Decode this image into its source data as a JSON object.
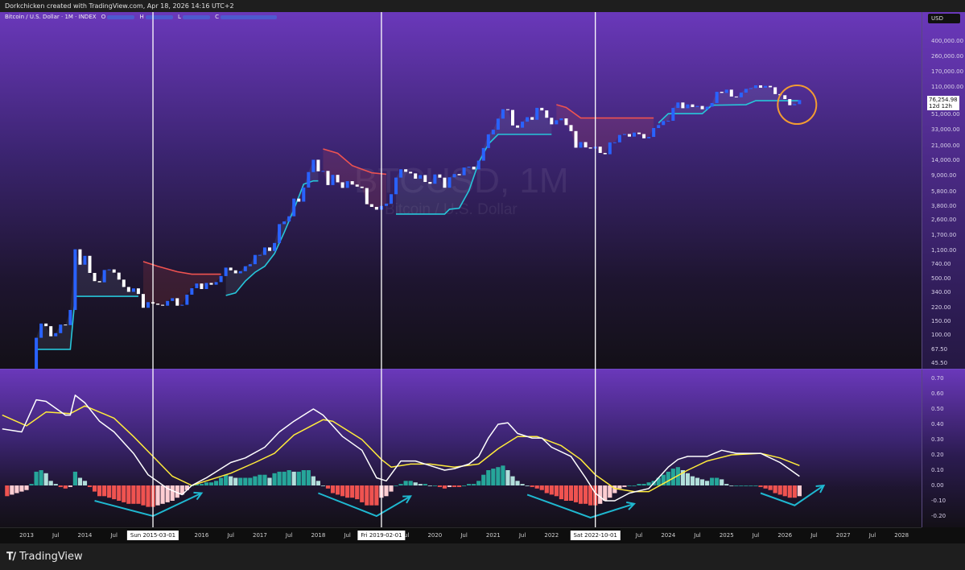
{
  "header": {
    "attribution": "Dorkchicken created with TradingView.com, Apr 18, 2026 14:16 UTC+2"
  },
  "legend": {
    "symbol": "Bitcoin / U.S. Dollar · 1M · INDEX",
    "o_label": "O",
    "h_label": "H",
    "l_label": "L",
    "c_label": "C"
  },
  "watermark": {
    "ticker": "BTCUSD, 1M",
    "name": "Bitcoin / U.S. Dollar"
  },
  "currency": "USD",
  "last_price": {
    "value": "76,254.98",
    "countdown": "12d 12h"
  },
  "footer": {
    "brand": "TradingView"
  },
  "colors": {
    "up": "#2962ff",
    "down": "#ffffff",
    "trend_bull": "#26c6da",
    "trend_bear": "#ef5350",
    "macd": "#ffffff",
    "signal": "#ffeb3b",
    "hist_pos_grow": "#26a69a",
    "hist_pos_fall": "#b2dfdb",
    "hist_neg_grow": "#ef5350",
    "hist_neg_fall": "#ffcdd2",
    "annotation_arrow": "#1fb8d0",
    "annotation_circle": "#f39c32",
    "markers": "#ffffff"
  },
  "chart_data": [
    {
      "type": "candlestick",
      "scale": "log",
      "start": "2013-01",
      "interval": "1M",
      "closes": [
        20,
        33,
        93,
        139,
        129,
        97,
        106,
        135,
        133,
        204,
        1130,
        732,
        940,
        580,
        460,
        445,
        630,
        640,
        585,
        480,
        390,
        340,
        375,
        320,
        217,
        254,
        244,
        236,
        230,
        263,
        284,
        230,
        236,
        314,
        377,
        430,
        368,
        437,
        416,
        448,
        531,
        674,
        624,
        574,
        609,
        700,
        742,
        963,
        965,
        1190,
        1080,
        1350,
        2300,
        2480,
        2870,
        4730,
        4340,
        6460,
        10000,
        14150,
        10220,
        10330,
        6930,
        9240,
        7490,
        6400,
        7730,
        7030,
        6630,
        6370,
        4040,
        3740,
        3460,
        3850,
        4100,
        5350,
        8560,
        10820,
        10080,
        9630,
        8300,
        9190,
        7560,
        7190,
        9350,
        8540,
        6430,
        8620,
        9450,
        9140,
        11350,
        11650,
        10780,
        13800,
        19700,
        29000,
        33100,
        45200,
        58900,
        57700,
        37300,
        35000,
        41500,
        47100,
        43800,
        61300,
        57000,
        46300,
        38500,
        43200,
        45500,
        37700,
        31800,
        19900,
        23300,
        20050,
        19400,
        20500,
        17160,
        16550,
        23100,
        23150,
        28500,
        29250,
        27200,
        30480,
        29230,
        25940,
        26970,
        34660,
        37720,
        42280,
        42580,
        61130,
        71290,
        60640,
        67500,
        62680,
        64620,
        58970,
        63330,
        70220,
        96400,
        93430,
        102400,
        84350,
        82550,
        94200,
        104600,
        107100,
        115700,
        108200,
        114000,
        109500,
        90400,
        87500,
        78600,
        66000,
        68000,
        76254.98
      ],
      "price_ticks": [
        "400,000.00",
        "260,000.00",
        "170,000.00",
        "110,000.00",
        "51,000.00",
        "33,000.00",
        "21,000.00",
        "14,000.00",
        "9,000.00",
        "5,800.00",
        "3,800.00",
        "2,600.00",
        "1,700.00",
        "1,100.00",
        "740.00",
        "500.00",
        "340.00",
        "220.00",
        "150.00",
        "100.00",
        "67.50",
        "45.50"
      ],
      "trend_line": [
        {
          "trend": "bull",
          "points": [
            [
              "2013-03",
              67
            ],
            [
              "2013-10",
              67
            ],
            [
              "2013-11",
              300
            ],
            [
              "2014-12",
              300
            ]
          ]
        },
        {
          "trend": "bear",
          "points": [
            [
              "2015-01",
              800
            ],
            [
              "2015-04",
              700
            ],
            [
              "2015-08",
              600
            ],
            [
              "2015-11",
              560
            ],
            [
              "2016-05",
              560
            ]
          ]
        },
        {
          "trend": "bull",
          "points": [
            [
              "2016-06",
              307
            ],
            [
              "2016-08",
              330
            ],
            [
              "2016-10",
              460
            ],
            [
              "2016-12",
              590
            ],
            [
              "2017-02",
              700
            ],
            [
              "2017-04",
              1000
            ],
            [
              "2017-06",
              1820
            ],
            [
              "2017-08",
              3490
            ],
            [
              "2017-10",
              7100
            ],
            [
              "2017-12",
              7800
            ],
            [
              "2018-01",
              7800
            ]
          ]
        },
        {
          "trend": "bear",
          "points": [
            [
              "2018-02",
              19200
            ],
            [
              "2018-05",
              17000
            ],
            [
              "2018-08",
              12000
            ],
            [
              "2018-12",
              9800
            ],
            [
              "2019-03",
              9400
            ]
          ]
        },
        {
          "trend": "bull",
          "points": [
            [
              "2019-05",
              3050
            ],
            [
              "2020-03",
              3050
            ],
            [
              "2020-04",
              3500
            ],
            [
              "2020-06",
              3600
            ],
            [
              "2020-08",
              5900
            ],
            [
              "2020-10",
              13000
            ],
            [
              "2020-12",
              22000
            ],
            [
              "2021-02",
              29000
            ],
            [
              "2022-01",
              29000
            ]
          ]
        },
        {
          "trend": "bear",
          "points": [
            [
              "2022-02",
              67000
            ],
            [
              "2022-04",
              62000
            ],
            [
              "2022-07",
              46000
            ],
            [
              "2023-10",
              46000
            ]
          ]
        },
        {
          "trend": "bull",
          "points": [
            [
              "2023-11",
              40000
            ],
            [
              "2024-01",
              52000
            ],
            [
              "2024-08",
              52000
            ],
            [
              "2024-10",
              66000
            ],
            [
              "2025-05",
              67000
            ],
            [
              "2025-07",
              75000
            ],
            [
              "2026-04",
              75000
            ]
          ]
        }
      ],
      "annotation_circle": {
        "date": "2026-03",
        "price": 67000
      }
    },
    {
      "type": "line+histogram",
      "ticks": [
        "0.70",
        "0.60",
        "0.50",
        "0.40",
        "0.30",
        "0.20",
        "0.10",
        "0.00",
        "-0.10",
        "-0.20"
      ],
      "macd": [
        [
          "2012-08",
          0.37
        ],
        [
          "2012-12",
          0.35
        ],
        [
          "2013-03",
          0.56
        ],
        [
          "2013-05",
          0.55
        ],
        [
          "2013-09",
          0.46
        ],
        [
          "2013-10",
          0.46
        ],
        [
          "2013-11",
          0.59
        ],
        [
          "2014-01",
          0.54
        ],
        [
          "2014-04",
          0.42
        ],
        [
          "2014-07",
          0.35
        ],
        [
          "2014-11",
          0.21
        ],
        [
          "2015-02",
          0.07
        ],
        [
          "2015-06",
          -0.02
        ],
        [
          "2015-09",
          -0.06
        ],
        [
          "2015-11",
          0.0
        ],
        [
          "2016-02",
          0.05
        ],
        [
          "2016-07",
          0.15
        ],
        [
          "2016-10",
          0.18
        ],
        [
          "2017-02",
          0.25
        ],
        [
          "2017-05",
          0.35
        ],
        [
          "2017-08",
          0.42
        ],
        [
          "2017-12",
          0.5
        ],
        [
          "2018-02",
          0.46
        ],
        [
          "2018-06",
          0.32
        ],
        [
          "2018-10",
          0.23
        ],
        [
          "2019-01",
          0.05
        ],
        [
          "2019-03",
          0.03
        ],
        [
          "2019-06",
          0.16
        ],
        [
          "2019-08",
          0.16
        ],
        [
          "2019-09",
          0.16
        ],
        [
          "2019-12",
          0.13
        ],
        [
          "2020-03",
          0.1
        ],
        [
          "2020-05",
          0.11
        ],
        [
          "2020-08",
          0.14
        ],
        [
          "2020-10",
          0.19
        ],
        [
          "2020-12",
          0.31
        ],
        [
          "2021-02",
          0.4
        ],
        [
          "2021-04",
          0.41
        ],
        [
          "2021-06",
          0.34
        ],
        [
          "2021-09",
          0.31
        ],
        [
          "2021-11",
          0.31
        ],
        [
          "2022-01",
          0.25
        ],
        [
          "2022-05",
          0.19
        ],
        [
          "2022-08",
          0.05
        ],
        [
          "2022-10",
          -0.05
        ],
        [
          "2022-12",
          -0.1
        ],
        [
          "2023-02",
          -0.1
        ],
        [
          "2023-05",
          -0.05
        ],
        [
          "2023-09",
          -0.02
        ],
        [
          "2024-01",
          0.12
        ],
        [
          "2024-03",
          0.17
        ],
        [
          "2024-05",
          0.19
        ],
        [
          "2024-07",
          0.19
        ],
        [
          "2024-09",
          0.19
        ],
        [
          "2024-12",
          0.23
        ],
        [
          "2025-03",
          0.21
        ],
        [
          "2025-08",
          0.21
        ],
        [
          "2025-12",
          0.15
        ],
        [
          "2026-04",
          0.06
        ]
      ],
      "signal": [
        [
          "2012-08",
          0.46
        ],
        [
          "2013-01",
          0.39
        ],
        [
          "2013-05",
          0.48
        ],
        [
          "2013-10",
          0.47
        ],
        [
          "2014-01",
          0.52
        ],
        [
          "2014-07",
          0.44
        ],
        [
          "2014-11",
          0.32
        ],
        [
          "2015-03",
          0.19
        ],
        [
          "2015-07",
          0.06
        ],
        [
          "2015-11",
          0.0
        ],
        [
          "2016-02",
          0.03
        ],
        [
          "2016-07",
          0.08
        ],
        [
          "2016-12",
          0.15
        ],
        [
          "2017-04",
          0.21
        ],
        [
          "2017-08",
          0.33
        ],
        [
          "2018-02",
          0.43
        ],
        [
          "2018-04",
          0.42
        ],
        [
          "2018-10",
          0.3
        ],
        [
          "2019-02",
          0.17
        ],
        [
          "2019-04",
          0.12
        ],
        [
          "2019-08",
          0.14
        ],
        [
          "2019-12",
          0.14
        ],
        [
          "2020-05",
          0.12
        ],
        [
          "2020-10",
          0.14
        ],
        [
          "2021-02",
          0.24
        ],
        [
          "2021-06",
          0.32
        ],
        [
          "2021-10",
          0.32
        ],
        [
          "2022-03",
          0.26
        ],
        [
          "2022-07",
          0.17
        ],
        [
          "2022-10",
          0.07
        ],
        [
          "2023-02",
          -0.02
        ],
        [
          "2023-06",
          -0.04
        ],
        [
          "2023-09",
          -0.04
        ],
        [
          "2024-01",
          0.03
        ],
        [
          "2024-05",
          0.1
        ],
        [
          "2024-09",
          0.16
        ],
        [
          "2025-02",
          0.2
        ],
        [
          "2025-08",
          0.21
        ],
        [
          "2025-12",
          0.18
        ],
        [
          "2026-04",
          0.13
        ]
      ],
      "histogram_start": "2012-09",
      "histogram": [
        -0.07,
        -0.06,
        -0.05,
        -0.04,
        -0.03,
        0.01,
        0.09,
        0.1,
        0.08,
        0.03,
        0.01,
        -0.01,
        -0.02,
        -0.01,
        0.09,
        0.05,
        0.03,
        -0.01,
        -0.04,
        -0.07,
        -0.07,
        -0.08,
        -0.09,
        -0.1,
        -0.11,
        -0.12,
        -0.12,
        -0.12,
        -0.13,
        -0.14,
        -0.14,
        -0.13,
        -0.12,
        -0.11,
        -0.1,
        -0.08,
        -0.06,
        -0.03,
        0,
        0.01,
        0.01,
        0.02,
        0.02,
        0.03,
        0.05,
        0.07,
        0.06,
        0.05,
        0.05,
        0.05,
        0.05,
        0.06,
        0.07,
        0.07,
        0.05,
        0.08,
        0.09,
        0.09,
        0.1,
        0.09,
        0.09,
        0.1,
        0.1,
        0.06,
        0.03,
        0,
        -0.02,
        -0.05,
        -0.06,
        -0.07,
        -0.08,
        -0.08,
        -0.09,
        -0.11,
        -0.13,
        -0.13,
        -0.13,
        -0.08,
        -0.07,
        -0.04,
        0,
        0.01,
        0.03,
        0.03,
        0.02,
        0.01,
        0.01,
        0,
        0,
        -0.01,
        -0.02,
        -0.01,
        -0.01,
        -0.01,
        0,
        0.01,
        0.01,
        0.03,
        0.07,
        0.1,
        0.11,
        0.12,
        0.13,
        0.1,
        0.06,
        0.03,
        0.01,
        0,
        -0.01,
        -0.02,
        -0.03,
        -0.05,
        -0.06,
        -0.07,
        -0.09,
        -0.1,
        -0.1,
        -0.11,
        -0.12,
        -0.12,
        -0.13,
        -0.13,
        -0.12,
        -0.1,
        -0.08,
        -0.05,
        -0.02,
        -0.01,
        0,
        0,
        0.01,
        0.01,
        0.02,
        0.03,
        0.05,
        0.07,
        0.09,
        0.11,
        0.12,
        0.1,
        0.08,
        0.06,
        0.05,
        0.04,
        0.03,
        0.05,
        0.05,
        0.04,
        0.01,
        0,
        0,
        0,
        0,
        0,
        0,
        -0.01,
        -0.02,
        -0.03,
        -0.05,
        -0.06,
        -0.07,
        -0.08,
        -0.08,
        -0.07
      ],
      "annotation_arrows": [
        [
          [
            "2014-03",
            -0.1
          ],
          [
            "2015-03",
            -0.2
          ],
          [
            "2016-01",
            -0.05
          ]
        ],
        [
          [
            "2018-01",
            -0.05
          ],
          [
            "2019-01",
            -0.2
          ],
          [
            "2019-08",
            -0.07
          ]
        ],
        [
          [
            "2021-08",
            -0.06
          ],
          [
            "2022-09",
            -0.21
          ],
          [
            "2023-06",
            -0.12
          ]
        ],
        [
          [
            "2025-08",
            -0.05
          ],
          [
            "2026-03",
            -0.13
          ],
          [
            "2026-09",
            0.0
          ]
        ]
      ]
    }
  ],
  "time_axis": {
    "ticks": [
      [
        "2013",
        "2013-01"
      ],
      [
        "Jul",
        "2013-07"
      ],
      [
        "2014",
        "2014-01"
      ],
      [
        "Jul",
        "2014-07"
      ],
      [
        "2016",
        "2016-01"
      ],
      [
        "Jul",
        "2016-07"
      ],
      [
        "2017",
        "2017-01"
      ],
      [
        "Jul",
        "2017-07"
      ],
      [
        "2018",
        "2018-01"
      ],
      [
        "Jul",
        "2018-07"
      ],
      [
        "Jul",
        "2019-07"
      ],
      [
        "2020",
        "2020-01"
      ],
      [
        "Jul",
        "2020-07"
      ],
      [
        "2021",
        "2021-01"
      ],
      [
        "Jul",
        "2021-07"
      ],
      [
        "2022",
        "2022-01"
      ],
      [
        "Jul",
        "2023-07"
      ],
      [
        "2024",
        "2024-01"
      ],
      [
        "Jul",
        "2024-07"
      ],
      [
        "2025",
        "2025-01"
      ],
      [
        "Jul",
        "2025-07"
      ],
      [
        "2026",
        "2026-01"
      ],
      [
        "Jul",
        "2026-07"
      ],
      [
        "2027",
        "2027-01"
      ],
      [
        "Jul",
        "2027-07"
      ],
      [
        "2028",
        "2028-01"
      ],
      [
        "Jul",
        "2028-07"
      ]
    ],
    "markers": [
      {
        "label": "Sun 2015-03-01",
        "date": "2015-03"
      },
      {
        "label": "Fri 2019-02-01",
        "date": "2019-02"
      },
      {
        "label": "Sat 2022-10-01",
        "date": "2022-10"
      }
    ]
  }
}
